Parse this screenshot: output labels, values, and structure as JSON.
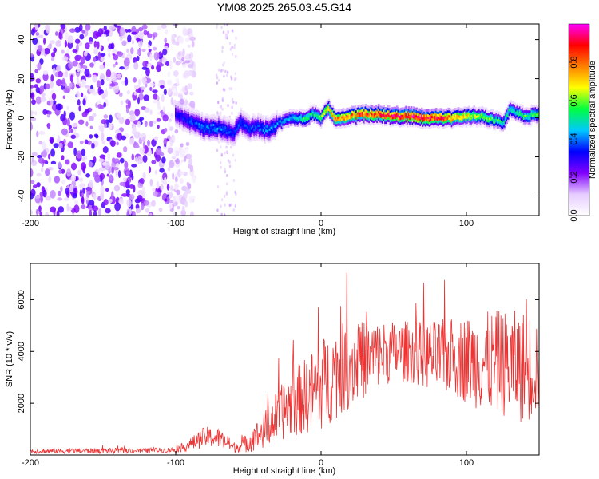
{
  "chart_data": {
    "title": "YM08.2025.265.03.45.G14",
    "panels": [
      {
        "type": "heatmap",
        "xlabel": "Height of straight line (km)",
        "ylabel": "Frequency (Hz)",
        "xlim": [
          -200,
          150
        ],
        "ylim": [
          -50,
          48
        ],
        "x_ticks": [
          -200,
          -100,
          0,
          100
        ],
        "y_ticks": [
          -40,
          -20,
          0,
          20,
          40
        ],
        "colorbar": {
          "label": "Normalized spectral amplitude",
          "range": [
            0,
            1
          ],
          "ticks": [
            0.0,
            0.2,
            0.4,
            0.6,
            0.8
          ],
          "tick_labels": [
            "0.0",
            "0.2",
            "0.4",
            "0.6",
            "0.8"
          ],
          "colors": [
            "#ffffff",
            "#e6ccff",
            "#8000ff",
            "#0000ff",
            "#00c8ff",
            "#00ff40",
            "#ffff00",
            "#ff8000",
            "#ff0000",
            "#ff00ff"
          ]
        },
        "ridge": {
          "x": [
            -100,
            -90,
            -80,
            -70,
            -60,
            -55,
            -50,
            -45,
            -40,
            -35,
            -30,
            -20,
            -10,
            -5,
            0,
            5,
            10,
            20,
            30,
            40,
            50,
            60,
            70,
            80,
            90,
            100,
            110,
            120,
            125,
            130,
            140,
            150
          ],
          "freq_hz": [
            2,
            -2,
            -5,
            -5,
            -8,
            -2,
            -6,
            -4,
            -6,
            -6,
            -3,
            0,
            0,
            2,
            0,
            5,
            0,
            1,
            2,
            2,
            1,
            1,
            0,
            0,
            0,
            1,
            1,
            -1,
            -3,
            4,
            1,
            2
          ],
          "amplitude": [
            0.3,
            0.35,
            0.4,
            0.4,
            0.35,
            0.35,
            0.35,
            0.35,
            0.4,
            0.4,
            0.4,
            0.45,
            0.55,
            0.5,
            0.6,
            0.7,
            0.8,
            0.8,
            0.85,
            0.9,
            0.9,
            0.95,
            0.95,
            0.9,
            0.8,
            0.7,
            0.6,
            0.55,
            0.5,
            0.5,
            0.55,
            0.6
          ]
        },
        "noise_region_x": [
          -200,
          -95
        ],
        "noise_amplitude": 0.15
      },
      {
        "type": "line",
        "xlabel": "Height of straight line (km)",
        "ylabel": "SNR (10 * v/v)",
        "xlim": [
          -200,
          150
        ],
        "ylim": [
          0,
          7400
        ],
        "x_ticks": [
          -200,
          -100,
          0,
          100
        ],
        "y_ticks": [
          2000,
          4000,
          6000
        ],
        "color": "#ee3333",
        "envelope": {
          "x": [
            -200,
            -120,
            -100,
            -90,
            -80,
            -70,
            -60,
            -55,
            -50,
            -40,
            -30,
            -20,
            -10,
            0,
            10,
            20,
            30,
            40,
            50,
            60,
            70,
            80,
            90,
            100,
            110,
            120,
            130,
            140,
            150
          ],
          "mean": [
            150,
            170,
            200,
            400,
            700,
            650,
            300,
            350,
            500,
            900,
            1500,
            2000,
            2300,
            2700,
            3200,
            3500,
            3700,
            3900,
            4000,
            4000,
            3900,
            3800,
            3800,
            3700,
            3600,
            3600,
            3500,
            3400,
            3500
          ],
          "spread": [
            100,
            100,
            100,
            250,
            400,
            400,
            200,
            250,
            400,
            700,
            1000,
            1300,
            1500,
            1800,
            1800,
            1700,
            1500,
            1300,
            1200,
            1200,
            1300,
            1400,
            1500,
            1700,
            1900,
            2000,
            2100,
            2200,
            2000
          ]
        }
      }
    ]
  }
}
